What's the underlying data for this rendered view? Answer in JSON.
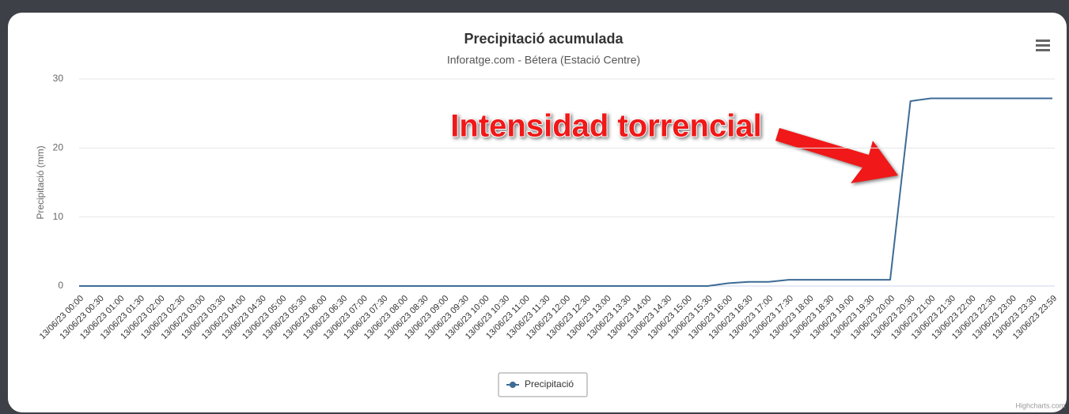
{
  "chart_data": {
    "type": "line",
    "title": "Precipitació acumulada",
    "subtitle": "Inforatge.com - Bétera (Estació Centre)",
    "y_axis_label": "Precipitació (mm)",
    "annotation": "Intensidad torrencial",
    "credit": "Highcharts.com",
    "categories": [
      "13/06/23 00:00",
      "13/06/23 00:30",
      "13/06/23 01:00",
      "13/06/23 01:30",
      "13/06/23 02:00",
      "13/06/23 02:30",
      "13/06/23 03:00",
      "13/06/23 03:30",
      "13/06/23 04:00",
      "13/06/23 04:30",
      "13/06/23 05:00",
      "13/06/23 05:30",
      "13/06/23 06:00",
      "13/06/23 06:30",
      "13/06/23 07:00",
      "13/06/23 07:30",
      "13/06/23 08:00",
      "13/06/23 08:30",
      "13/06/23 09:00",
      "13/06/23 09:30",
      "13/06/23 10:00",
      "13/06/23 10:30",
      "13/06/23 11:00",
      "13/06/23 11:30",
      "13/06/23 12:00",
      "13/06/23 12:30",
      "13/06/23 13:00",
      "13/06/23 13:30",
      "13/06/23 14:00",
      "13/06/23 14:30",
      "13/06/23 15:00",
      "13/06/23 15:30",
      "13/06/23 16:00",
      "13/06/23 16:30",
      "13/06/23 17:00",
      "13/06/23 17:30",
      "13/06/23 18:00",
      "13/06/23 18:30",
      "13/06/23 19:00",
      "13/06/23 19:30",
      "13/06/23 20:00",
      "13/06/23 20:30",
      "13/06/23 21:00",
      "13/06/23 21:30",
      "13/06/23 22:00",
      "13/06/23 22:30",
      "13/06/23 23:00",
      "13/06/23 23:30",
      "13/06/23 23:59"
    ],
    "series": [
      {
        "name": "Precipitació",
        "color": "#3d6b95",
        "values": [
          0,
          0,
          0,
          0,
          0,
          0,
          0,
          0,
          0,
          0,
          0,
          0,
          0,
          0,
          0,
          0,
          0,
          0,
          0,
          0,
          0,
          0,
          0,
          0,
          0,
          0,
          0,
          0,
          0,
          0,
          0,
          0,
          0.4,
          0.6,
          0.6,
          0.9,
          0.9,
          0.9,
          0.9,
          0.9,
          0.9,
          26.8,
          27.2,
          27.2,
          27.2,
          27.2,
          27.2,
          27.2,
          27.2
        ]
      }
    ],
    "ylim": [
      0,
      30
    ],
    "yticks": [
      0,
      10,
      20,
      30
    ],
    "grid": true,
    "legend": "bottom"
  }
}
